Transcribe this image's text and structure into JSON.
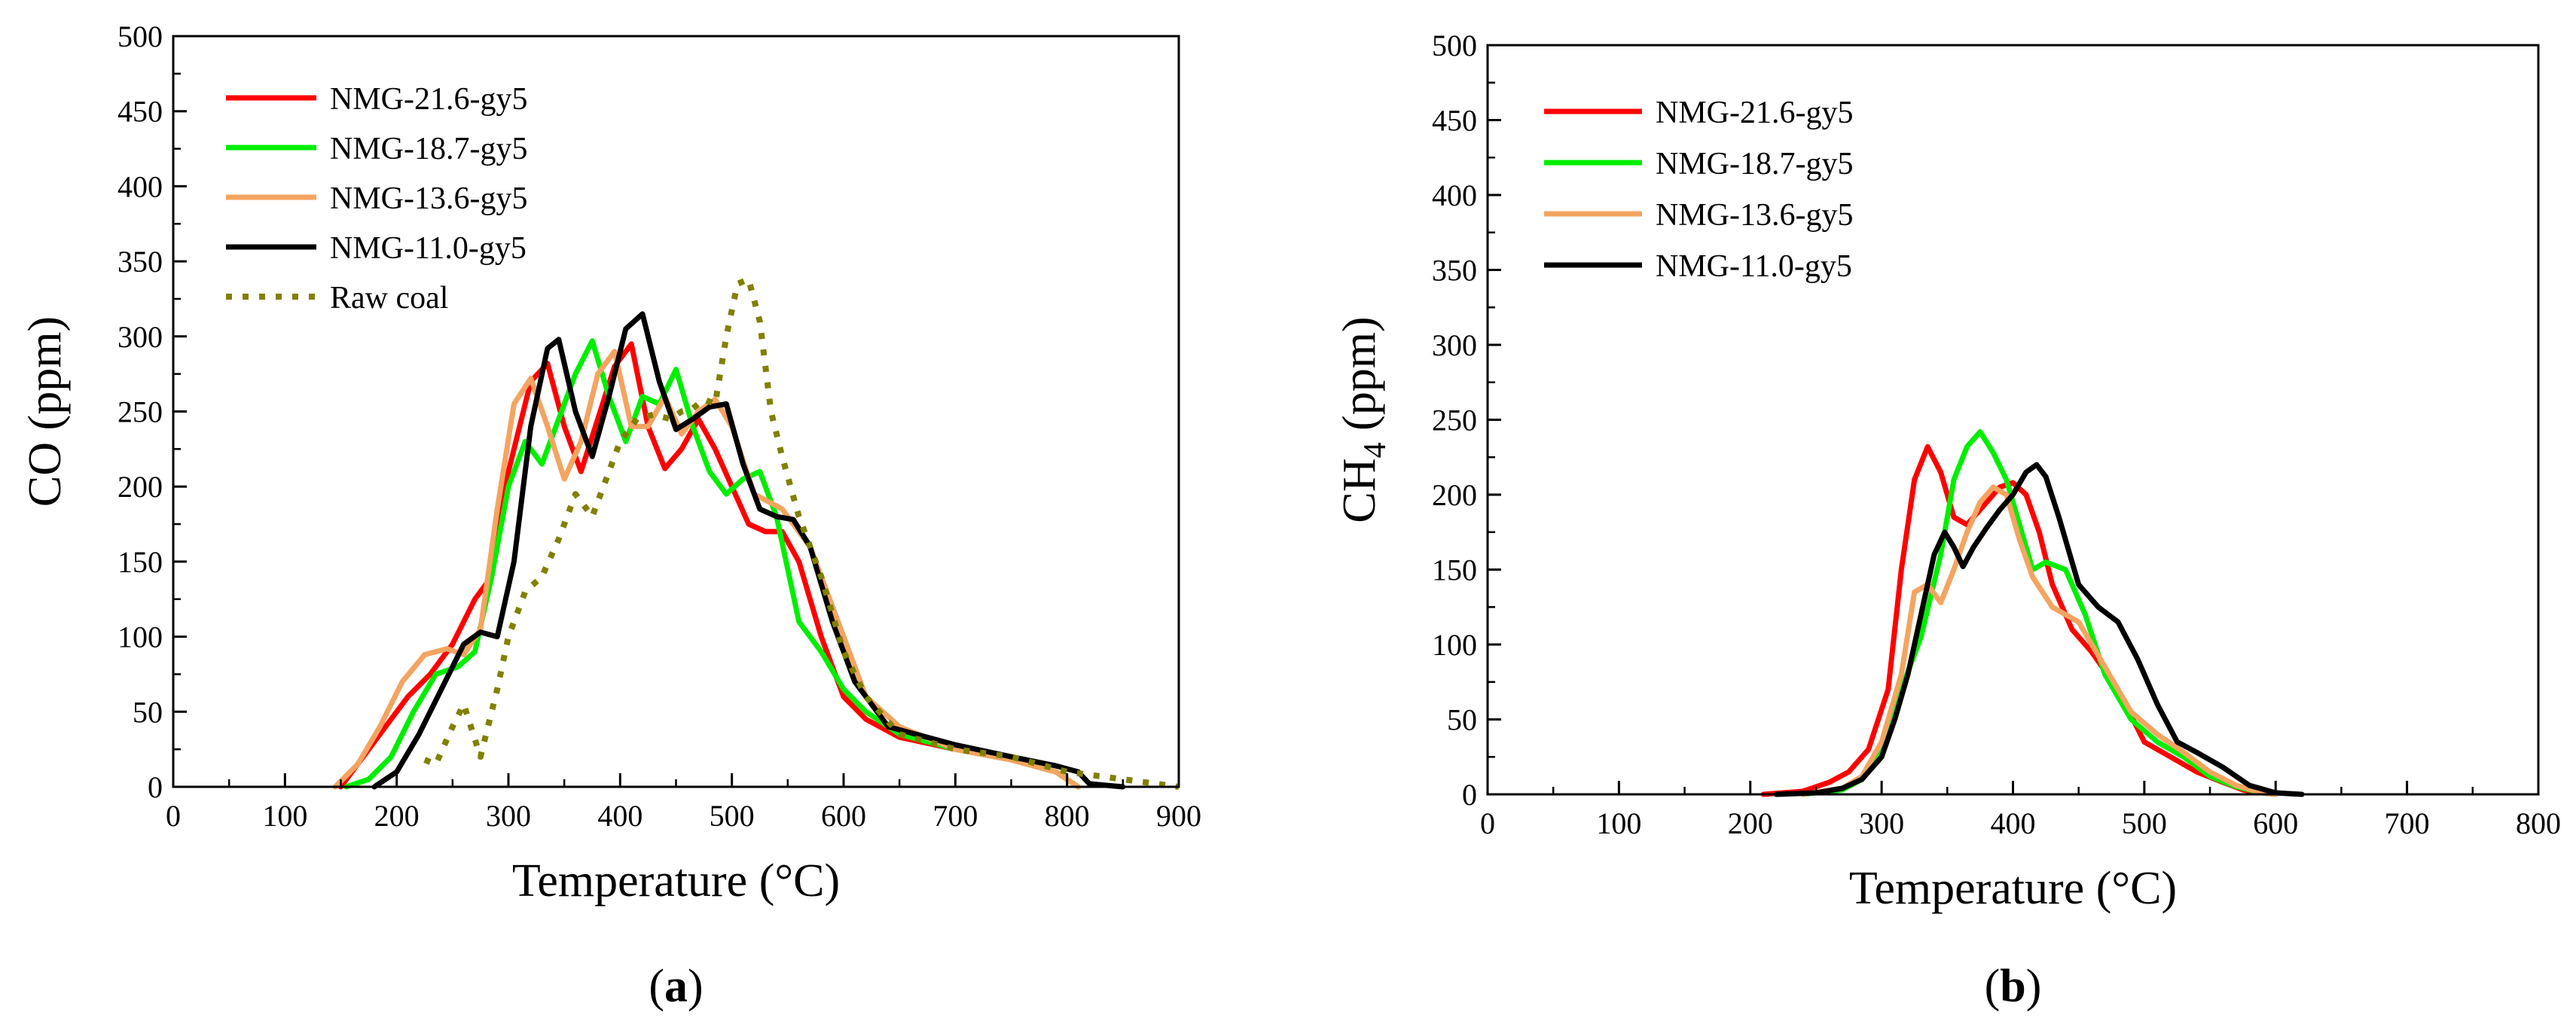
{
  "chart_data": [
    {
      "type": "line",
      "panel": "a",
      "panel_label": "a",
      "xlabel": "Temperature (°C)",
      "ylabel": "CO (ppm)",
      "xlim": [
        0,
        900
      ],
      "ylim": [
        0,
        500
      ],
      "xticks": [
        0,
        100,
        200,
        300,
        400,
        500,
        600,
        700,
        800,
        900
      ],
      "yticks": [
        0,
        50,
        100,
        150,
        200,
        250,
        300,
        350,
        400,
        450,
        500
      ],
      "legend_position": "top-left",
      "series": [
        {
          "name": "NMG-21.6-gy5",
          "color": "#ff0000",
          "style": "solid",
          "x": [
            150,
            170,
            190,
            210,
            230,
            250,
            270,
            285,
            300,
            320,
            335,
            350,
            365,
            380,
            395,
            410,
            425,
            440,
            455,
            470,
            485,
            500,
            515,
            530,
            545,
            560,
            580,
            600,
            620,
            650,
            700,
            750,
            790,
            810
          ],
          "y": [
            0,
            20,
            40,
            60,
            75,
            95,
            125,
            140,
            210,
            270,
            282,
            240,
            210,
            245,
            280,
            295,
            240,
            212,
            225,
            245,
            225,
            200,
            175,
            170,
            170,
            150,
            100,
            60,
            45,
            33,
            25,
            18,
            10,
            0
          ]
        },
        {
          "name": "NMG-18.7-gy5",
          "color": "#00ee00",
          "style": "solid",
          "x": [
            155,
            175,
            195,
            215,
            235,
            255,
            270,
            285,
            300,
            315,
            330,
            345,
            360,
            375,
            390,
            405,
            420,
            435,
            450,
            465,
            480,
            495,
            510,
            525,
            540,
            560,
            580,
            600,
            620,
            650,
            700,
            750,
            790,
            810
          ],
          "y": [
            0,
            5,
            20,
            50,
            75,
            80,
            90,
            140,
            200,
            230,
            215,
            245,
            275,
            297,
            260,
            230,
            260,
            255,
            278,
            240,
            210,
            195,
            205,
            210,
            180,
            110,
            90,
            65,
            50,
            35,
            25,
            18,
            10,
            0
          ]
        },
        {
          "name": "NMG-13.6-gy5",
          "color": "#f4a460",
          "style": "solid",
          "x": [
            145,
            165,
            185,
            205,
            225,
            245,
            260,
            275,
            290,
            305,
            320,
            335,
            350,
            365,
            380,
            395,
            410,
            425,
            440,
            455,
            470,
            485,
            500,
            520,
            545,
            570,
            600,
            620,
            650,
            700,
            750,
            790,
            810
          ],
          "y": [
            0,
            15,
            40,
            70,
            88,
            92,
            88,
            105,
            185,
            255,
            272,
            240,
            205,
            230,
            275,
            290,
            240,
            240,
            260,
            235,
            250,
            258,
            240,
            195,
            185,
            160,
            100,
            60,
            40,
            25,
            18,
            10,
            0
          ]
        },
        {
          "name": "NMG-11.0-gy5",
          "color": "#000000",
          "style": "solid",
          "x": [
            180,
            200,
            220,
            240,
            260,
            275,
            290,
            305,
            320,
            335,
            345,
            360,
            375,
            390,
            405,
            420,
            435,
            450,
            465,
            480,
            495,
            510,
            525,
            540,
            555,
            570,
            590,
            610,
            640,
            700,
            750,
            790,
            810,
            820,
            850
          ],
          "y": [
            0,
            10,
            35,
            65,
            95,
            103,
            100,
            150,
            240,
            292,
            298,
            250,
            220,
            260,
            305,
            315,
            270,
            238,
            245,
            253,
            255,
            215,
            185,
            180,
            178,
            160,
            110,
            70,
            40,
            28,
            20,
            14,
            10,
            2,
            0
          ]
        },
        {
          "name": "Raw coal",
          "color": "#808000",
          "style": "dotted",
          "x": [
            225,
            235,
            250,
            260,
            275,
            290,
            300,
            315,
            330,
            345,
            360,
            375,
            390,
            400,
            415,
            430,
            445,
            455,
            465,
            475,
            485,
            495,
            505,
            515,
            525,
            535,
            545,
            560,
            580,
            600,
            620,
            650,
            700,
            750,
            800,
            850,
            880,
            900
          ],
          "y": [
            18,
            15,
            40,
            55,
            20,
            65,
            100,
            130,
            140,
            165,
            195,
            180,
            210,
            230,
            245,
            248,
            245,
            250,
            252,
            258,
            255,
            300,
            335,
            338,
            310,
            250,
            220,
            180,
            140,
            90,
            60,
            35,
            25,
            20,
            10,
            5,
            2,
            0
          ]
        }
      ]
    },
    {
      "type": "line",
      "panel": "b",
      "panel_label": "b",
      "xlabel": "Temperature (°C)",
      "ylabel": "CH",
      "ylabel_sub": "4",
      "ylabel_suffix": " (ppm)",
      "xlim": [
        0,
        800
      ],
      "ylim": [
        0,
        500
      ],
      "xticks": [
        0,
        100,
        200,
        300,
        400,
        500,
        600,
        700,
        800
      ],
      "yticks": [
        0,
        50,
        100,
        150,
        200,
        250,
        300,
        350,
        400,
        450,
        500
      ],
      "legend_position": "top-left",
      "series": [
        {
          "name": "NMG-21.6-gy5",
          "color": "#ff0000",
          "style": "solid",
          "x": [
            210,
            240,
            260,
            275,
            290,
            305,
            315,
            325,
            335,
            345,
            355,
            365,
            375,
            390,
            400,
            410,
            420,
            430,
            445,
            460,
            480,
            500,
            520,
            540,
            560,
            575,
            590,
            600
          ],
          "y": [
            0,
            2,
            8,
            15,
            30,
            70,
            150,
            210,
            232,
            215,
            185,
            180,
            190,
            205,
            208,
            200,
            175,
            140,
            110,
            95,
            70,
            35,
            25,
            15,
            8,
            3,
            1,
            0
          ]
        },
        {
          "name": "NMG-18.7-gy5",
          "color": "#00ee00",
          "style": "solid",
          "x": [
            240,
            270,
            285,
            300,
            315,
            330,
            345,
            355,
            365,
            375,
            385,
            395,
            405,
            415,
            425,
            440,
            455,
            470,
            490,
            510,
            530,
            550,
            570,
            590,
            600
          ],
          "y": [
            0,
            3,
            10,
            30,
            70,
            105,
            160,
            210,
            232,
            242,
            228,
            210,
            180,
            150,
            155,
            150,
            120,
            80,
            50,
            35,
            25,
            12,
            5,
            1,
            0
          ]
        },
        {
          "name": "NMG-13.6-gy5",
          "color": "#f4a460",
          "style": "solid",
          "x": [
            240,
            270,
            285,
            300,
            315,
            325,
            335,
            345,
            355,
            365,
            375,
            385,
            395,
            405,
            415,
            430,
            450,
            470,
            490,
            510,
            530,
            550,
            570,
            590,
            600
          ],
          "y": [
            0,
            4,
            12,
            35,
            80,
            135,
            140,
            128,
            150,
            175,
            195,
            205,
            200,
            170,
            145,
            125,
            115,
            85,
            55,
            40,
            28,
            15,
            6,
            1,
            0
          ]
        },
        {
          "name": "NMG-11.0-gy5",
          "color": "#000000",
          "style": "solid",
          "x": [
            220,
            250,
            270,
            285,
            300,
            310,
            320,
            330,
            340,
            348,
            355,
            362,
            370,
            380,
            390,
            400,
            410,
            418,
            425,
            435,
            450,
            465,
            480,
            495,
            510,
            525,
            540,
            560,
            580,
            600,
            620
          ],
          "y": [
            0,
            1,
            4,
            10,
            25,
            50,
            80,
            120,
            160,
            175,
            165,
            152,
            165,
            178,
            190,
            200,
            215,
            220,
            212,
            185,
            140,
            125,
            115,
            90,
            60,
            35,
            28,
            18,
            6,
            1,
            0
          ]
        }
      ]
    }
  ]
}
